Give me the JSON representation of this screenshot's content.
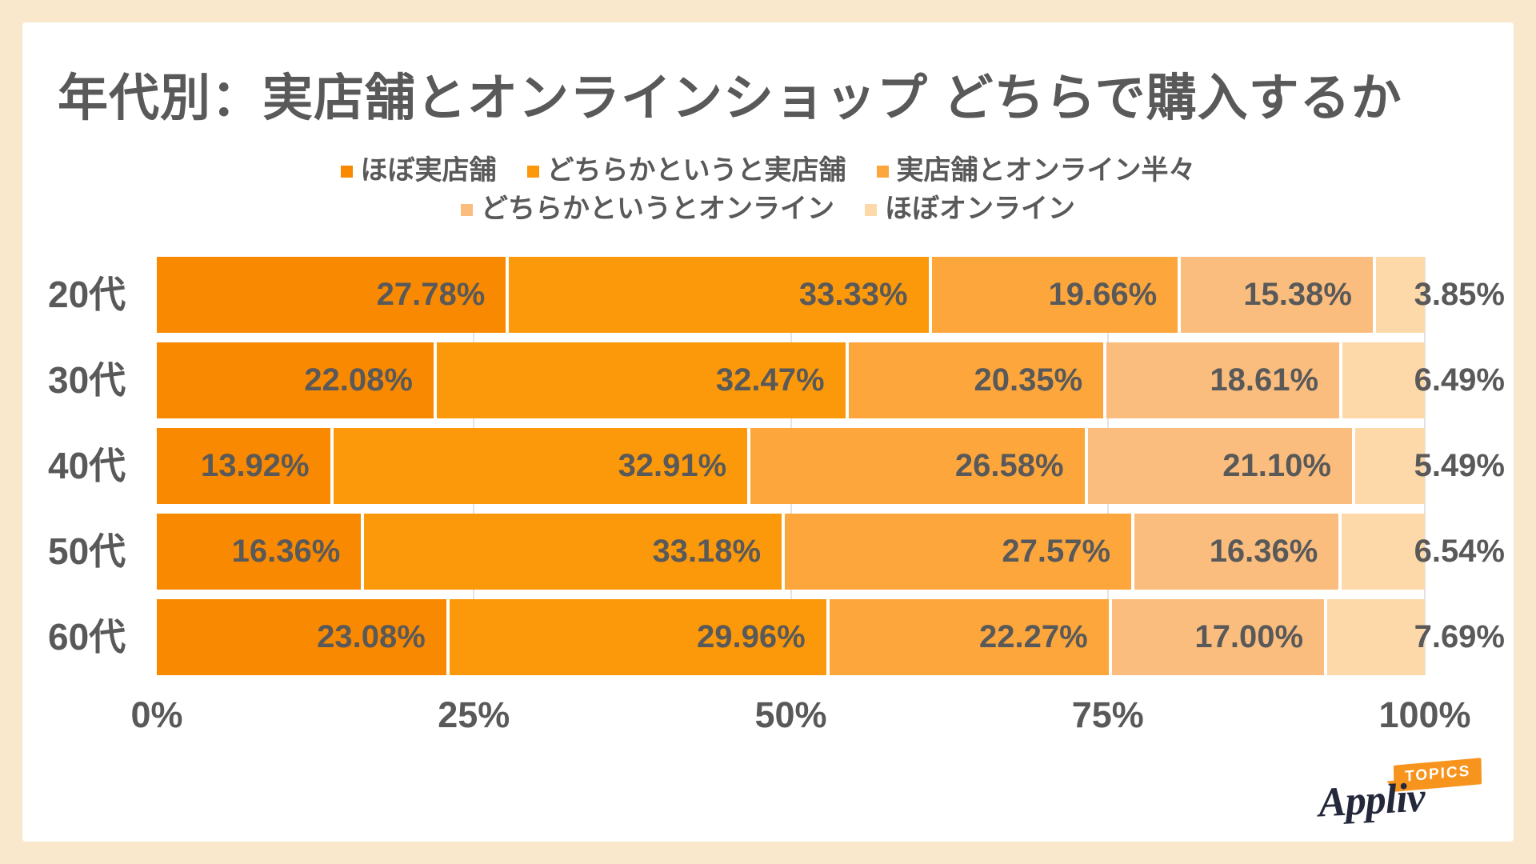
{
  "page": {
    "background_color": "#FAE8CD",
    "card_color": "#FFFFFF",
    "text_color": "#595959",
    "gridline_color": "#E3E3E3"
  },
  "title": "年代別：実店舗とオンラインショップ どちらで購入するか",
  "legend": {
    "lines": [
      [
        0,
        1,
        2
      ],
      [
        3,
        4
      ]
    ]
  },
  "chart_data": {
    "type": "bar",
    "stacked": true,
    "orientation": "horizontal",
    "title": "年代別：実店舗とオンラインショップ どちらで購入するか",
    "categories": [
      "20代",
      "30代",
      "40代",
      "50代",
      "60代"
    ],
    "series": [
      {
        "name": "ほぼ実店舗",
        "color": "#F98900",
        "values": [
          27.78,
          22.08,
          13.92,
          16.36,
          23.08
        ]
      },
      {
        "name": "どちらかというと実店舗",
        "color": "#FC990A",
        "values": [
          33.33,
          32.47,
          32.91,
          33.18,
          29.96
        ]
      },
      {
        "name": "実店舗とオンライン半々",
        "color": "#FCA63C",
        "values": [
          19.66,
          20.35,
          26.58,
          27.57,
          22.27
        ]
      },
      {
        "name": "どちらかというとオンライン",
        "color": "#FBBD7D",
        "values": [
          15.38,
          18.61,
          21.1,
          16.36,
          17.0
        ]
      },
      {
        "name": "ほぼオンライン",
        "color": "#FDD9A9",
        "values": [
          3.85,
          6.49,
          5.49,
          6.54,
          7.69
        ]
      }
    ],
    "value_suffix": "%",
    "value_decimals": 2,
    "xlim": [
      0,
      100
    ],
    "x_ticks": [
      {
        "pos": 0,
        "label": "0%"
      },
      {
        "pos": 25,
        "label": "25%"
      },
      {
        "pos": 50,
        "label": "50%"
      },
      {
        "pos": 75,
        "label": "75%"
      },
      {
        "pos": 100,
        "label": "100%"
      }
    ],
    "gridline_positions": [
      25,
      50,
      75,
      100
    ],
    "legend_position": "top",
    "grid": true
  },
  "footer": {
    "brand": "Appliv",
    "badge": "TOPICS",
    "brand_color": "#23283B",
    "badge_color": "#F7941E"
  }
}
